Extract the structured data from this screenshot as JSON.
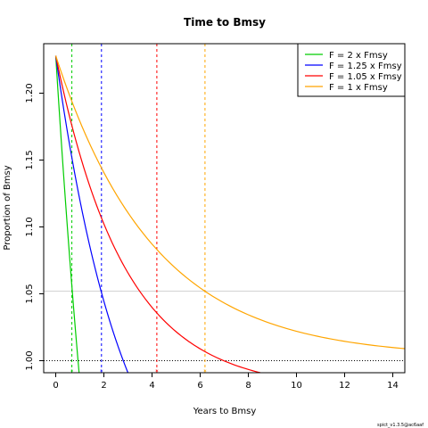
{
  "chart_data": {
    "type": "line",
    "title": "Time to Bmsy",
    "xlabel": "Years to Bmsy",
    "ylabel": "Proportion of Bmsy",
    "xlim": [
      -0.5,
      14.5
    ],
    "ylim": [
      0.991,
      1.237
    ],
    "xticks": [
      0,
      2,
      4,
      6,
      8,
      10,
      12,
      14
    ],
    "yticks": [
      1.0,
      1.05,
      1.1,
      1.15,
      1.2
    ],
    "ytick_labels": [
      "1.00",
      "1.05",
      "1.10",
      "1.15",
      "1.20"
    ],
    "legend_position": "top-right",
    "grid": false,
    "start_value": 1.228,
    "series": [
      {
        "name": "F = 2 x Fmsy",
        "color": "#00cd00",
        "end_x": 0.97,
        "end_y": 0.991,
        "bmsy_time": 0.67
      },
      {
        "name": "F = 1.25 x Fmsy",
        "color": "#0000ff",
        "end_x": 3.0,
        "end_y": 0.991,
        "bmsy_time": 1.9
      },
      {
        "name": "F = 1.05 x Fmsy",
        "color": "#ff0000",
        "end_x": 8.5,
        "end_y": 0.991,
        "bmsy_time": 4.2
      },
      {
        "name": "F = 1 x Fmsy",
        "color": "#ffa500",
        "end_x": 14.5,
        "end_y": 1.009,
        "bmsy_time": 6.2
      }
    ],
    "reference_lines": {
      "bmsy": 1.0,
      "gray_level": 1.052
    }
  },
  "footer": "spict_v1.3.5@ac6aaf"
}
